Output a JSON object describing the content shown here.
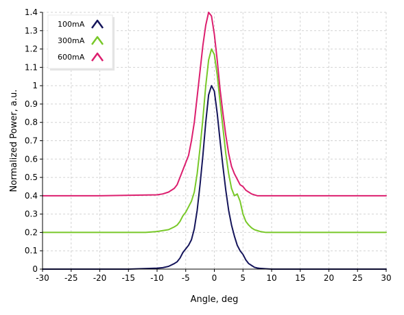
{
  "chart_data": {
    "type": "line",
    "title": "",
    "xlabel": "Angle, deg",
    "ylabel": "Normalized Power, a.u.",
    "xlim": [
      -30,
      30
    ],
    "ylim": [
      0,
      1.4
    ],
    "xticks": [
      -30,
      -25,
      -20,
      -15,
      -10,
      -5,
      0,
      5,
      10,
      15,
      20,
      25,
      30
    ],
    "yticks": [
      0,
      0.1,
      0.2,
      0.3,
      0.4,
      0.5,
      0.6,
      0.7,
      0.8,
      0.9,
      1,
      1.1,
      1.2,
      1.3,
      1.4
    ],
    "xtick_labels": [
      "-30",
      "-25",
      "-20",
      "-15",
      "-10",
      "-5",
      "0",
      "5",
      "10",
      "15",
      "20",
      "25",
      "30"
    ],
    "ytick_labels": [
      "0",
      "0.1",
      "0.2",
      "0.3",
      "0.4",
      "0.5",
      "0.6",
      "0.7",
      "0.8",
      "0.9",
      "1",
      "1.1",
      "1.2",
      "1.3",
      "1.4"
    ],
    "grid": true,
    "legend_position": "top-left",
    "series": [
      {
        "name": "100mA",
        "color": "#14145a",
        "x": [
          -30,
          -20,
          -15,
          -10,
          -9,
          -8,
          -7,
          -6.5,
          -6,
          -5.5,
          -5,
          -4.5,
          -4,
          -3.5,
          -3,
          -2.5,
          -2,
          -1.5,
          -1,
          -0.5,
          0,
          0.5,
          1,
          1.5,
          2,
          2.5,
          3,
          3.5,
          4,
          4.5,
          5,
          5.5,
          6,
          6.5,
          7,
          7.5,
          8,
          9,
          10,
          15,
          20,
          30
        ],
        "y": [
          0,
          0,
          0,
          0.005,
          0.008,
          0.015,
          0.03,
          0.04,
          0.06,
          0.09,
          0.11,
          0.13,
          0.16,
          0.22,
          0.32,
          0.46,
          0.62,
          0.8,
          0.95,
          1.0,
          0.97,
          0.85,
          0.7,
          0.56,
          0.43,
          0.32,
          0.24,
          0.18,
          0.13,
          0.1,
          0.08,
          0.05,
          0.03,
          0.02,
          0.01,
          0.006,
          0.004,
          0.002,
          0,
          0,
          0,
          0
        ]
      },
      {
        "name": "300mA",
        "color": "#78c828",
        "x": [
          -30,
          -20,
          -12,
          -10,
          -9,
          -8,
          -7,
          -6.5,
          -6,
          -5.5,
          -5,
          -4.5,
          -4,
          -3.5,
          -3,
          -2.5,
          -2,
          -1.5,
          -1,
          -0.5,
          0,
          0.5,
          1,
          1.5,
          2,
          2.5,
          3,
          3.5,
          4,
          4.5,
          5,
          5.5,
          6,
          6.5,
          7,
          7.5,
          8,
          9,
          10,
          15,
          20,
          30
        ],
        "y": [
          0.2,
          0.2,
          0.2,
          0.205,
          0.21,
          0.215,
          0.23,
          0.24,
          0.26,
          0.29,
          0.31,
          0.34,
          0.37,
          0.42,
          0.52,
          0.66,
          0.82,
          1.0,
          1.14,
          1.2,
          1.17,
          1.06,
          0.91,
          0.77,
          0.63,
          0.52,
          0.44,
          0.4,
          0.41,
          0.37,
          0.3,
          0.26,
          0.24,
          0.225,
          0.215,
          0.21,
          0.205,
          0.2,
          0.2,
          0.2,
          0.2,
          0.2
        ]
      },
      {
        "name": "600mA",
        "color": "#dc1e6e",
        "x": [
          -30,
          -20,
          -10,
          -9,
          -8,
          -7,
          -6.5,
          -6,
          -5.5,
          -5,
          -4.5,
          -4,
          -3.5,
          -3,
          -2.5,
          -2,
          -1.5,
          -1,
          -0.5,
          0,
          0.5,
          1,
          1.5,
          2,
          2.5,
          3,
          3.5,
          4,
          4.5,
          5,
          5.5,
          6,
          6.5,
          7,
          7.5,
          8,
          9,
          10,
          15,
          20,
          30
        ],
        "y": [
          0.4,
          0.4,
          0.405,
          0.41,
          0.42,
          0.44,
          0.46,
          0.5,
          0.54,
          0.58,
          0.62,
          0.7,
          0.8,
          0.94,
          1.08,
          1.22,
          1.33,
          1.4,
          1.38,
          1.28,
          1.14,
          0.98,
          0.85,
          0.73,
          0.63,
          0.56,
          0.52,
          0.49,
          0.46,
          0.45,
          0.43,
          0.42,
          0.41,
          0.405,
          0.4,
          0.4,
          0.4,
          0.4,
          0.4,
          0.4,
          0.4
        ]
      }
    ]
  }
}
